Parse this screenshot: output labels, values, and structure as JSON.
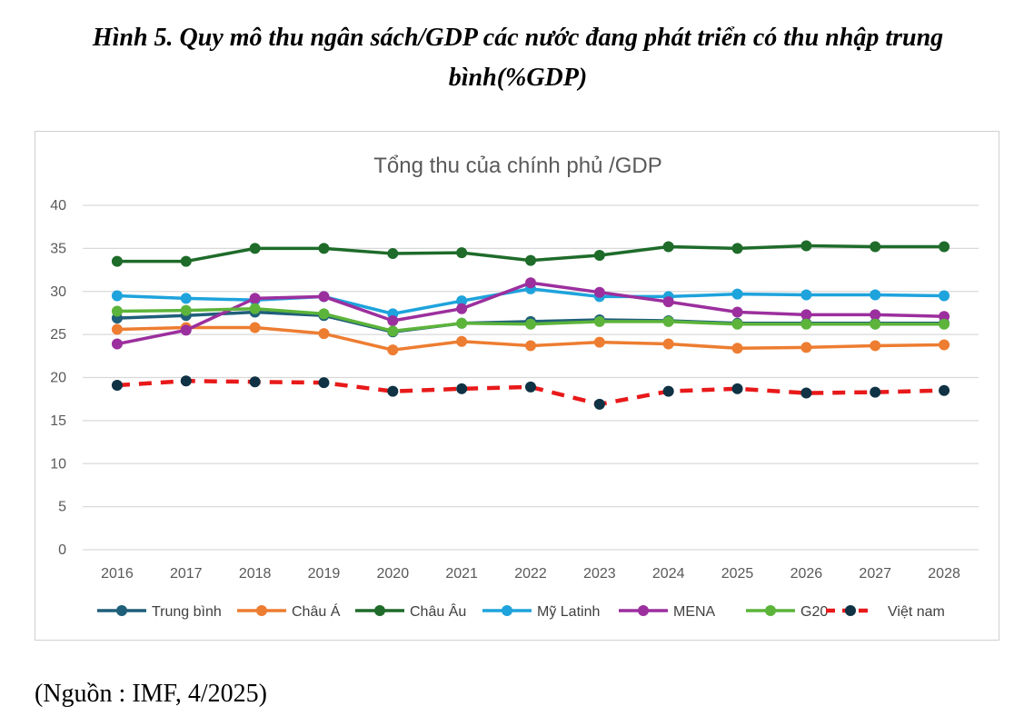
{
  "figure_title": "Hình 5. Quy mô thu ngân sách/GDP các nước đang phát triển có thu nhập trung bình(%GDP)",
  "source": "(Nguồn : IMF, 4/2025)",
  "chart_data": {
    "type": "line",
    "title": "Tổng thu của chính phủ /GDP",
    "xlabel": "",
    "ylabel": "",
    "ylim": [
      0,
      40
    ],
    "yticks": [
      0,
      5,
      10,
      15,
      20,
      25,
      30,
      35,
      40
    ],
    "grid": true,
    "legend_position": "bottom",
    "categories": [
      "2016",
      "2017",
      "2018",
      "2019",
      "2020",
      "2021",
      "2022",
      "2023",
      "2024",
      "2025",
      "2026",
      "2027",
      "2028"
    ],
    "series": [
      {
        "name": "Trung bình",
        "color": "#1f5f7a",
        "dashed": false,
        "values": [
          26.9,
          27.2,
          27.6,
          27.2,
          25.3,
          26.3,
          26.5,
          26.7,
          26.6,
          26.3,
          26.3,
          26.3,
          26.3
        ]
      },
      {
        "name": "Châu Á",
        "color": "#ed7d31",
        "dashed": false,
        "values": [
          25.6,
          25.8,
          25.8,
          25.1,
          23.2,
          24.2,
          23.7,
          24.1,
          23.9,
          23.4,
          23.5,
          23.7,
          23.8
        ]
      },
      {
        "name": "Châu Âu",
        "color": "#1e6b2a",
        "dashed": false,
        "values": [
          33.5,
          33.5,
          35.0,
          35.0,
          34.4,
          34.5,
          33.6,
          34.2,
          35.2,
          35.0,
          35.3,
          35.2,
          35.2
        ]
      },
      {
        "name": "Mỹ Latinh",
        "color": "#1ea3dc",
        "dashed": false,
        "values": [
          29.5,
          29.2,
          29.0,
          29.4,
          27.4,
          28.9,
          30.3,
          29.4,
          29.4,
          29.7,
          29.6,
          29.6,
          29.5
        ]
      },
      {
        "name": "MENA",
        "color": "#9c2f9e",
        "dashed": false,
        "values": [
          23.9,
          25.5,
          29.2,
          29.4,
          26.6,
          28.0,
          31.0,
          29.9,
          28.8,
          27.6,
          27.3,
          27.3,
          27.1
        ]
      },
      {
        "name": "G20",
        "color": "#5cb43a",
        "dashed": false,
        "values": [
          27.7,
          27.8,
          28.0,
          27.4,
          25.4,
          26.3,
          26.2,
          26.5,
          26.5,
          26.2,
          26.2,
          26.2,
          26.2
        ]
      },
      {
        "name": "Việt  nam",
        "color": "#e8191a",
        "marker_color": "#0f3244",
        "dashed": true,
        "values": [
          19.1,
          19.6,
          19.5,
          19.4,
          18.4,
          18.7,
          18.9,
          16.9,
          18.4,
          18.7,
          18.2,
          18.3,
          18.5
        ]
      }
    ]
  }
}
